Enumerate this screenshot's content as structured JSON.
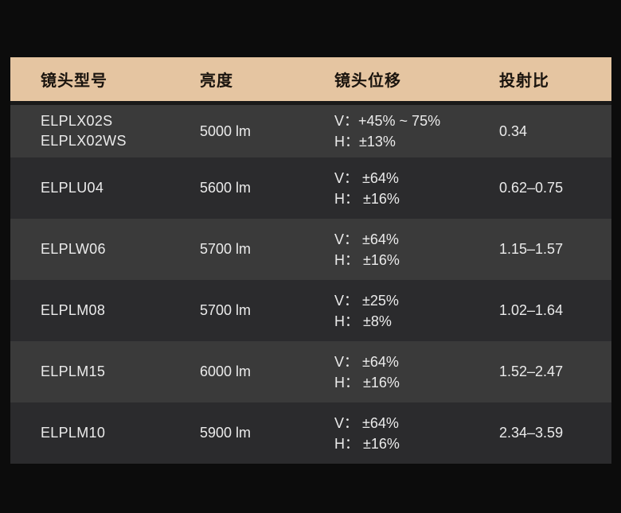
{
  "colors": {
    "page_bg": "#0c0c0c",
    "header_bg": "#e5c5a1",
    "header_text": "#1a140e",
    "row_light_bg": "#3a3a3a",
    "row_dark_bg": "#2b2b2d",
    "body_text": "#ebebeb",
    "divider": "#191919"
  },
  "chart_data": {
    "type": "table",
    "title": "",
    "columns": [
      "镜头型号",
      "亮度",
      "镜头位移",
      "投射比"
    ],
    "rows": [
      {
        "model": "ELPLX02S\nELPLX02WS",
        "brightness": "5000 lm",
        "lens_shift": "V：+45% ~ 75%\nH：±13%",
        "throw_ratio": "0.34"
      },
      {
        "model": "ELPLU04",
        "brightness": "5600 lm",
        "lens_shift": "V： ±64%\nH： ±16%",
        "throw_ratio": "0.62–0.75"
      },
      {
        "model": "ELPLW06",
        "brightness": "5700 lm",
        "lens_shift": "V： ±64%\nH： ±16%",
        "throw_ratio": "1.15–1.57"
      },
      {
        "model": "ELPLM08",
        "brightness": "5700 lm",
        "lens_shift": "V： ±25%\nH： ±8%",
        "throw_ratio": "1.02–1.64"
      },
      {
        "model": "ELPLM15",
        "brightness": "6000 lm",
        "lens_shift": "V： ±64%\nH： ±16%",
        "throw_ratio": "1.52–2.47"
      },
      {
        "model": "ELPLM10",
        "brightness": "5900 lm",
        "lens_shift": "V： ±64%\nH： ±16%",
        "throw_ratio": "2.34–3.59"
      }
    ]
  }
}
